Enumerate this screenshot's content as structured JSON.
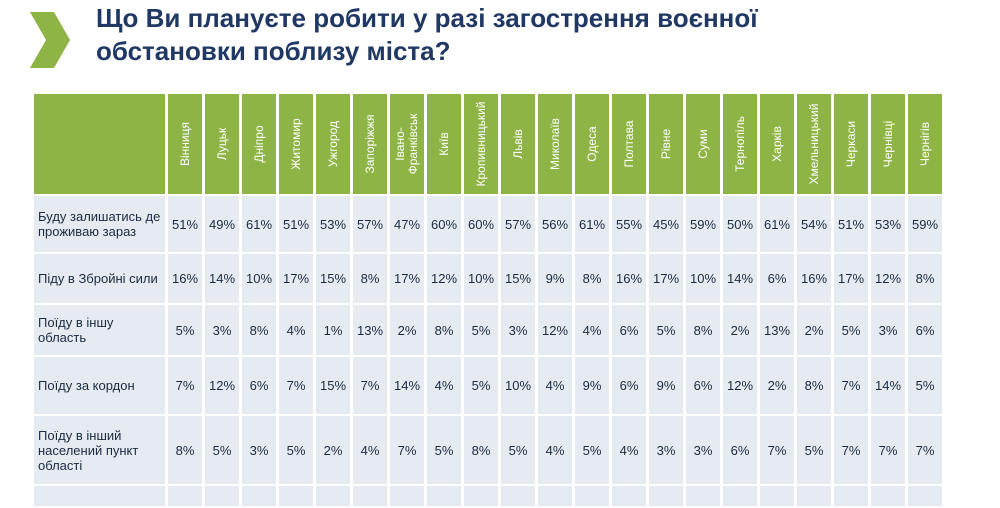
{
  "title": {
    "line1": "Що Ви плануєте робити у разі загострення воєнної",
    "line2": "обстановки поблизу міста?"
  },
  "colors": {
    "accent_green": "#8fb446",
    "title_navy": "#1f3864",
    "cell_bg": "#e6ebf2"
  },
  "table": {
    "columns": [
      "Вінниця",
      "Луцьк",
      "Дніпро",
      "Житомир",
      "Ужгород",
      "Запоріжжя",
      "Івано-Франківськ",
      "Київ",
      "Кропивницький",
      "Львів",
      "Миколаїв",
      "Одеса",
      "Полтава",
      "Рівне",
      "Суми",
      "Тернопіль",
      "Харків",
      "Хмельницький",
      "Черкаси",
      "Чернівці",
      "Чернігів"
    ],
    "rows": [
      {
        "label": "Буду залишатись де проживаю зараз",
        "values": [
          "51%",
          "49%",
          "61%",
          "51%",
          "53%",
          "57%",
          "47%",
          "60%",
          "60%",
          "57%",
          "56%",
          "61%",
          "55%",
          "45%",
          "59%",
          "50%",
          "61%",
          "54%",
          "51%",
          "53%",
          "59%"
        ]
      },
      {
        "label": "Піду в Збройні сили",
        "values": [
          "16%",
          "14%",
          "10%",
          "17%",
          "15%",
          "8%",
          "17%",
          "12%",
          "10%",
          "15%",
          "9%",
          "8%",
          "16%",
          "17%",
          "10%",
          "14%",
          "6%",
          "16%",
          "17%",
          "12%",
          "8%"
        ]
      },
      {
        "label": "Поїду в іншу область",
        "values": [
          "5%",
          "3%",
          "8%",
          "4%",
          "1%",
          "13%",
          "2%",
          "8%",
          "5%",
          "3%",
          "12%",
          "4%",
          "6%",
          "5%",
          "8%",
          "2%",
          "13%",
          "2%",
          "5%",
          "3%",
          "6%"
        ]
      },
      {
        "label": "Поїду за кордон",
        "values": [
          "7%",
          "12%",
          "6%",
          "7%",
          "15%",
          "7%",
          "14%",
          "4%",
          "5%",
          "10%",
          "4%",
          "9%",
          "6%",
          "9%",
          "6%",
          "12%",
          "2%",
          "8%",
          "7%",
          "14%",
          "5%"
        ]
      },
      {
        "label": "Поїду в інший населений пункт області",
        "values": [
          "8%",
          "5%",
          "3%",
          "5%",
          "2%",
          "4%",
          "7%",
          "5%",
          "8%",
          "5%",
          "4%",
          "5%",
          "4%",
          "3%",
          "3%",
          "6%",
          "7%",
          "5%",
          "7%",
          "7%",
          "7%"
        ]
      }
    ]
  }
}
